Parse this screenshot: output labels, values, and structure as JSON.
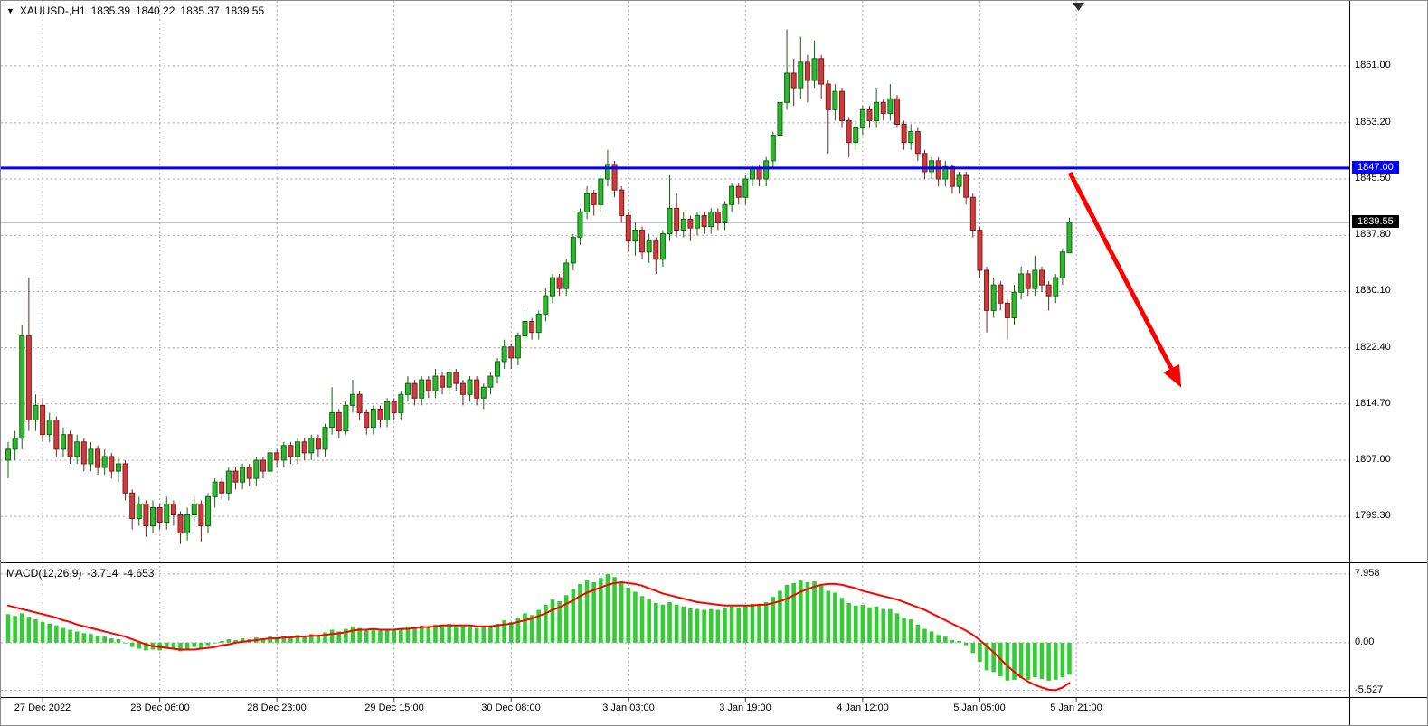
{
  "colors": {
    "up": "#2eb82e",
    "up_border": "#116611",
    "down": "#d23b3b",
    "down_border": "#7a1f1f",
    "grid": "#a6a6a6",
    "bid_line": "#9aa0a6",
    "resistance": "#0000ff",
    "macd_hist": "#32cd32",
    "macd_signal": "#ff0000",
    "arrow": "#fe0000",
    "separator": "#000000",
    "shift_marker": "#2f2f2f"
  },
  "header": {
    "chart_menu_icon": "▼",
    "symbol_period": "XAUUSD-,H1",
    "open": "1835.39",
    "high": "1840.22",
    "low": "1835.37",
    "close": "1839.55"
  },
  "macd_label": {
    "name": "MACD(12,26,9)",
    "macd_value": "-3.714",
    "signal_value": "-4.653"
  },
  "price_axis": {
    "ticks": [
      "1861.00",
      "1853.20",
      "1845.50",
      "1837.80",
      "1830.10",
      "1822.40",
      "1814.70",
      "1807.00",
      "1799.30"
    ],
    "resistance_tag": "1847.00",
    "bid_tag": "1839.55"
  },
  "macd_axis": {
    "ticks": [
      "7.958",
      "0.00",
      "-5.527"
    ]
  },
  "time_axis": {
    "ticks": [
      "27 Dec 2022",
      "28 Dec 06:00",
      "28 Dec 23:00",
      "29 Dec 15:00",
      "30 Dec 08:00",
      "3 Jan 03:00",
      "3 Jan 19:00",
      "4 Jan 12:00",
      "5 Jan 05:00",
      "5 Jan 21:00"
    ]
  },
  "chart_data": {
    "type": "candlestick",
    "symbol": "XAUUSD-",
    "timeframe": "H1",
    "ohlc_display": {
      "open": 1835.39,
      "high": 1840.22,
      "low": 1835.37,
      "close": 1839.55
    },
    "resistance_level": 1847.0,
    "bid_price": 1839.55,
    "ylim": [
      1793.0,
      1869.9
    ],
    "y_ticks": [
      1861.0,
      1853.2,
      1845.5,
      1837.8,
      1830.1,
      1822.4,
      1814.7,
      1807.0,
      1799.3
    ],
    "time_tick_bars": [
      5,
      22,
      39,
      56,
      73,
      90,
      107,
      124,
      141,
      155
    ],
    "candles": [
      [
        1807.0,
        1809.5,
        1804.5,
        1808.5
      ],
      [
        1808.5,
        1811.0,
        1807.0,
        1810.0
      ],
      [
        1810.0,
        1825.5,
        1808.5,
        1824.0
      ],
      [
        1824.0,
        1832.0,
        1811.0,
        1812.5
      ],
      [
        1812.5,
        1816.0,
        1811.0,
        1814.5
      ],
      [
        1814.5,
        1815.5,
        1809.5,
        1810.5
      ],
      [
        1810.5,
        1813.5,
        1809.5,
        1812.5
      ],
      [
        1812.5,
        1813.0,
        1807.5,
        1808.5
      ],
      [
        1808.5,
        1811.5,
        1807.5,
        1810.5
      ],
      [
        1810.5,
        1811.0,
        1806.5,
        1807.5
      ],
      [
        1807.5,
        1810.5,
        1806.5,
        1809.5
      ],
      [
        1809.5,
        1810.0,
        1805.5,
        1806.5
      ],
      [
        1806.5,
        1809.5,
        1805.5,
        1808.5
      ],
      [
        1808.5,
        1809.0,
        1805.0,
        1806.0
      ],
      [
        1806.0,
        1808.5,
        1805.0,
        1807.5
      ],
      [
        1807.5,
        1808.0,
        1804.5,
        1805.5
      ],
      [
        1805.5,
        1807.5,
        1804.0,
        1806.5
      ],
      [
        1806.5,
        1807.0,
        1801.5,
        1802.5
      ],
      [
        1802.5,
        1803.0,
        1797.5,
        1799.0
      ],
      [
        1799.0,
        1802.0,
        1798.0,
        1801.0
      ],
      [
        1801.0,
        1801.5,
        1796.5,
        1798.0
      ],
      [
        1798.0,
        1801.5,
        1797.0,
        1800.5
      ],
      [
        1800.5,
        1801.0,
        1797.5,
        1798.5
      ],
      [
        1798.5,
        1802.0,
        1797.5,
        1801.0
      ],
      [
        1801.0,
        1801.5,
        1798.0,
        1799.5
      ],
      [
        1799.5,
        1800.0,
        1795.5,
        1797.0
      ],
      [
        1797.0,
        1800.5,
        1796.0,
        1799.5
      ],
      [
        1799.5,
        1802.0,
        1798.5,
        1801.0
      ],
      [
        1801.0,
        1801.5,
        1795.8,
        1798.0
      ],
      [
        1798.0,
        1802.5,
        1797.0,
        1802.0
      ],
      [
        1802.0,
        1804.5,
        1800.5,
        1804.0
      ],
      [
        1804.0,
        1804.5,
        1801.5,
        1802.5
      ],
      [
        1802.5,
        1806.0,
        1801.5,
        1805.5
      ],
      [
        1805.5,
        1806.0,
        1803.0,
        1804.0
      ],
      [
        1804.0,
        1806.5,
        1803.0,
        1806.0
      ],
      [
        1806.0,
        1806.5,
        1803.5,
        1804.5
      ],
      [
        1804.5,
        1807.5,
        1803.5,
        1807.0
      ],
      [
        1807.0,
        1807.5,
        1804.5,
        1805.5
      ],
      [
        1805.5,
        1808.5,
        1804.5,
        1808.0
      ],
      [
        1808.0,
        1808.5,
        1806.0,
        1807.0
      ],
      [
        1807.0,
        1809.5,
        1806.0,
        1809.0
      ],
      [
        1809.0,
        1809.5,
        1806.5,
        1807.5
      ],
      [
        1807.5,
        1810.0,
        1806.5,
        1809.5
      ],
      [
        1809.5,
        1810.0,
        1807.0,
        1808.0
      ],
      [
        1808.0,
        1810.5,
        1807.0,
        1810.0
      ],
      [
        1810.0,
        1810.5,
        1807.5,
        1808.5
      ],
      [
        1808.5,
        1812.0,
        1807.5,
        1811.5
      ],
      [
        1811.5,
        1817.0,
        1810.5,
        1813.5
      ],
      [
        1813.5,
        1814.0,
        1810.0,
        1811.0
      ],
      [
        1811.0,
        1815.0,
        1810.5,
        1814.5
      ],
      [
        1814.5,
        1818.0,
        1813.5,
        1816.0
      ],
      [
        1816.0,
        1816.5,
        1812.5,
        1813.5
      ],
      [
        1813.5,
        1814.0,
        1810.5,
        1811.5
      ],
      [
        1811.5,
        1814.5,
        1810.5,
        1814.0
      ],
      [
        1814.0,
        1814.5,
        1811.5,
        1812.5
      ],
      [
        1812.5,
        1815.5,
        1811.5,
        1815.0
      ],
      [
        1815.0,
        1815.5,
        1812.5,
        1813.5
      ],
      [
        1813.5,
        1816.5,
        1812.5,
        1816.0
      ],
      [
        1816.0,
        1818.5,
        1815.0,
        1817.5
      ],
      [
        1817.5,
        1818.0,
        1814.5,
        1815.5
      ],
      [
        1815.5,
        1818.5,
        1814.5,
        1818.0
      ],
      [
        1818.0,
        1818.5,
        1815.5,
        1816.5
      ],
      [
        1816.5,
        1819.5,
        1815.5,
        1818.5
      ],
      [
        1818.5,
        1819.0,
        1816.0,
        1817.0
      ],
      [
        1817.0,
        1819.5,
        1816.0,
        1819.0
      ],
      [
        1819.0,
        1819.5,
        1816.5,
        1817.5
      ],
      [
        1817.5,
        1818.0,
        1814.5,
        1816.0
      ],
      [
        1816.0,
        1818.5,
        1815.0,
        1818.0
      ],
      [
        1818.0,
        1818.5,
        1814.5,
        1815.5
      ],
      [
        1815.5,
        1817.5,
        1814.0,
        1817.0
      ],
      [
        1817.0,
        1819.0,
        1816.0,
        1818.5
      ],
      [
        1818.5,
        1821.0,
        1817.5,
        1820.5
      ],
      [
        1820.5,
        1823.5,
        1819.5,
        1822.5
      ],
      [
        1822.5,
        1823.0,
        1819.5,
        1821.0
      ],
      [
        1821.0,
        1824.5,
        1820.0,
        1824.0
      ],
      [
        1824.0,
        1828.0,
        1823.0,
        1826.0
      ],
      [
        1826.0,
        1826.5,
        1823.5,
        1824.5
      ],
      [
        1824.5,
        1827.5,
        1823.5,
        1827.0
      ],
      [
        1827.0,
        1830.5,
        1826.0,
        1829.5
      ],
      [
        1829.5,
        1832.5,
        1828.5,
        1832.0
      ],
      [
        1832.0,
        1832.5,
        1829.5,
        1830.5
      ],
      [
        1830.5,
        1834.5,
        1829.5,
        1834.0
      ],
      [
        1834.0,
        1838.0,
        1833.0,
        1837.5
      ],
      [
        1837.5,
        1841.5,
        1836.5,
        1841.0
      ],
      [
        1841.0,
        1844.5,
        1840.0,
        1843.5
      ],
      [
        1843.5,
        1844.0,
        1840.5,
        1842.0
      ],
      [
        1842.0,
        1846.0,
        1841.0,
        1845.5
      ],
      [
        1845.5,
        1849.5,
        1844.5,
        1847.5
      ],
      [
        1847.5,
        1848.0,
        1843.0,
        1844.0
      ],
      [
        1844.0,
        1844.5,
        1839.5,
        1840.5
      ],
      [
        1840.5,
        1841.0,
        1835.5,
        1837.0
      ],
      [
        1837.0,
        1839.5,
        1835.0,
        1838.5
      ],
      [
        1838.5,
        1839.0,
        1834.5,
        1835.5
      ],
      [
        1835.5,
        1838.0,
        1834.0,
        1837.0
      ],
      [
        1837.0,
        1837.5,
        1832.5,
        1834.5
      ],
      [
        1834.5,
        1838.5,
        1833.5,
        1838.0
      ],
      [
        1838.0,
        1846.0,
        1837.0,
        1841.5
      ],
      [
        1841.5,
        1843.5,
        1837.5,
        1838.5
      ],
      [
        1838.5,
        1841.0,
        1837.5,
        1840.0
      ],
      [
        1840.0,
        1840.5,
        1837.0,
        1838.8
      ],
      [
        1838.8,
        1841.0,
        1837.8,
        1840.5
      ],
      [
        1840.5,
        1841.0,
        1838.0,
        1839.0
      ],
      [
        1839.0,
        1841.5,
        1838.0,
        1841.0
      ],
      [
        1841.0,
        1841.5,
        1838.5,
        1839.5
      ],
      [
        1839.5,
        1842.5,
        1838.5,
        1842.0
      ],
      [
        1842.0,
        1845.0,
        1841.0,
        1844.5
      ],
      [
        1844.5,
        1845.0,
        1842.0,
        1843.0
      ],
      [
        1843.0,
        1846.0,
        1842.0,
        1845.5
      ],
      [
        1845.5,
        1847.5,
        1844.5,
        1847.0
      ],
      [
        1847.0,
        1847.5,
        1844.5,
        1845.5
      ],
      [
        1845.5,
        1848.5,
        1844.5,
        1848.0
      ],
      [
        1848.0,
        1852.0,
        1847.0,
        1851.5
      ],
      [
        1851.5,
        1856.5,
        1850.5,
        1856.0
      ],
      [
        1856.0,
        1866.0,
        1855.0,
        1860.0
      ],
      [
        1860.0,
        1862.0,
        1855.5,
        1858.0
      ],
      [
        1858.0,
        1865.0,
        1856.5,
        1861.5
      ],
      [
        1861.5,
        1862.5,
        1856.0,
        1859.0
      ],
      [
        1859.0,
        1864.5,
        1858.0,
        1862.0
      ],
      [
        1862.0,
        1862.5,
        1856.5,
        1858.5
      ],
      [
        1858.5,
        1859.0,
        1849.0,
        1855.0
      ],
      [
        1855.0,
        1858.5,
        1853.5,
        1857.5
      ],
      [
        1857.5,
        1858.0,
        1852.5,
        1853.5
      ],
      [
        1853.5,
        1854.0,
        1848.5,
        1850.5
      ],
      [
        1850.5,
        1853.5,
        1849.5,
        1852.5
      ],
      [
        1852.5,
        1855.5,
        1851.5,
        1855.0
      ],
      [
        1855.0,
        1855.5,
        1852.5,
        1853.5
      ],
      [
        1853.5,
        1858.0,
        1852.5,
        1856.0
      ],
      [
        1856.0,
        1856.5,
        1853.5,
        1854.5
      ],
      [
        1854.5,
        1858.5,
        1853.5,
        1856.5
      ],
      [
        1856.5,
        1857.0,
        1852.5,
        1853.0
      ],
      [
        1853.0,
        1853.5,
        1849.5,
        1850.5
      ],
      [
        1850.5,
        1853.0,
        1849.5,
        1852.0
      ],
      [
        1852.0,
        1852.5,
        1848.0,
        1849.0
      ],
      [
        1849.0,
        1849.5,
        1845.5,
        1846.5
      ],
      [
        1846.5,
        1848.5,
        1845.5,
        1848.0
      ],
      [
        1848.0,
        1848.5,
        1844.5,
        1845.5
      ],
      [
        1845.5,
        1848.0,
        1844.5,
        1847.2
      ],
      [
        1847.2,
        1847.5,
        1843.5,
        1844.5
      ],
      [
        1844.5,
        1846.5,
        1843.5,
        1846.0
      ],
      [
        1846.0,
        1846.5,
        1842.0,
        1843.0
      ],
      [
        1843.0,
        1843.5,
        1837.5,
        1838.5
      ],
      [
        1838.5,
        1839.0,
        1832.0,
        1833.0
      ],
      [
        1833.0,
        1833.5,
        1824.5,
        1827.5
      ],
      [
        1827.5,
        1832.0,
        1826.5,
        1831.0
      ],
      [
        1831.0,
        1831.5,
        1827.5,
        1828.5
      ],
      [
        1828.5,
        1829.0,
        1823.5,
        1826.5
      ],
      [
        1826.5,
        1831.0,
        1825.5,
        1830.0
      ],
      [
        1830.0,
        1833.5,
        1829.0,
        1832.5
      ],
      [
        1832.5,
        1833.0,
        1829.5,
        1830.5
      ],
      [
        1830.5,
        1835.0,
        1829.5,
        1833.0
      ],
      [
        1833.0,
        1833.5,
        1830.0,
        1831.0
      ],
      [
        1831.0,
        1831.5,
        1827.5,
        1829.5
      ],
      [
        1829.5,
        1832.5,
        1828.5,
        1832.0
      ],
      [
        1832.0,
        1836.0,
        1831.0,
        1835.5
      ],
      [
        1835.39,
        1840.22,
        1835.37,
        1839.55
      ]
    ],
    "macd": {
      "params": "12,26,9",
      "macd_value": -3.714,
      "signal_value": -4.653,
      "y_ticks": [
        7.958,
        0.0,
        -5.527
      ],
      "ylim": [
        -6.3,
        9.2
      ],
      "histogram": [
        3.3,
        3.1,
        3.4,
        3,
        2.7,
        2.4,
        2.2,
        2,
        1.7,
        1.5,
        1.3,
        1.1,
        1,
        0.8,
        0.7,
        0.5,
        0.4,
        0,
        -0.5,
        -0.7,
        -0.9,
        -0.8,
        -0.9,
        -0.7,
        -0.8,
        -1,
        -0.8,
        -0.5,
        -0.7,
        -0.3,
        0,
        0.2,
        0.4,
        0.3,
        0.5,
        0.4,
        0.6,
        0.5,
        0.7,
        0.6,
        0.8,
        0.7,
        0.9,
        0.8,
        1,
        0.9,
        1.2,
        1.5,
        1.3,
        1.6,
        1.9,
        1.7,
        1.5,
        1.6,
        1.4,
        1.6,
        1.5,
        1.7,
        1.9,
        1.8,
        2,
        1.9,
        2.1,
        2,
        2.2,
        2,
        1.8,
        1.9,
        1.7,
        1.8,
        2,
        2.2,
        2.6,
        2.4,
        2.9,
        3.4,
        3.2,
        3.8,
        4.4,
        5,
        4.8,
        5.5,
        6.2,
        6.8,
        7.2,
        7,
        7.5,
        7.96,
        7.6,
        7,
        6.4,
        5.9,
        5.4,
        5,
        4.6,
        4.4,
        4.7,
        4.4,
        4.2,
        4,
        3.9,
        3.8,
        3.9,
        3.8,
        4,
        4.2,
        4.1,
        4.3,
        4.5,
        4.4,
        4.7,
        5.3,
        6,
        6.7,
        6.9,
        7.2,
        7,
        7.1,
        6.6,
        6,
        5.8,
        5.2,
        4.6,
        4.3,
        4.4,
        4.1,
        4.2,
        3.9,
        3.9,
        3.4,
        2.9,
        2.7,
        2.1,
        1.6,
        1.3,
        0.9,
        0.7,
        0.3,
        0.2,
        -0.3,
        -1.2,
        -2.2,
        -3.2,
        -3.4,
        -3.9,
        -4.4,
        -4.3,
        -4.1,
        -4.3,
        -4,
        -4.2,
        -4.4,
        -4.3,
        -4,
        -3.714
      ],
      "signal": [
        4.3,
        4.1,
        3.9,
        3.7,
        3.5,
        3.3,
        3.1,
        2.9,
        2.6,
        2.4,
        2.1,
        1.9,
        1.7,
        1.5,
        1.3,
        1.1,
        0.9,
        0.7,
        0.4,
        0.1,
        -0.2,
        -0.4,
        -0.5,
        -0.6,
        -0.7,
        -0.8,
        -0.8,
        -0.8,
        -0.7,
        -0.6,
        -0.5,
        -0.3,
        -0.2,
        0,
        0.1,
        0.2,
        0.3,
        0.4,
        0.5,
        0.5,
        0.6,
        0.6,
        0.7,
        0.7,
        0.8,
        0.8,
        0.9,
        1,
        1.1,
        1.2,
        1.4,
        1.5,
        1.5,
        1.6,
        1.5,
        1.5,
        1.5,
        1.6,
        1.6,
        1.7,
        1.8,
        1.8,
        1.9,
        2,
        2,
        2,
        2,
        2,
        1.9,
        1.9,
        1.9,
        2,
        2.1,
        2.2,
        2.4,
        2.6,
        2.8,
        3.1,
        3.4,
        3.8,
        4.1,
        4.5,
        4.9,
        5.4,
        5.8,
        6.1,
        6.4,
        6.7,
        6.9,
        7,
        6.9,
        6.8,
        6.6,
        6.3,
        6,
        5.7,
        5.5,
        5.3,
        5.1,
        4.9,
        4.7,
        4.6,
        4.5,
        4.4,
        4.3,
        4.3,
        4.3,
        4.3,
        4.3,
        4.4,
        4.4,
        4.6,
        4.8,
        5.1,
        5.5,
        5.9,
        6.2,
        6.5,
        6.7,
        6.8,
        6.8,
        6.7,
        6.5,
        6.3,
        6,
        5.8,
        5.6,
        5.4,
        5.2,
        5,
        4.7,
        4.4,
        4.1,
        3.8,
        3.4,
        3,
        2.6,
        2.2,
        1.8,
        1.4,
        0.9,
        0.3,
        -0.4,
        -1.1,
        -1.9,
        -2.7,
        -3.4,
        -4,
        -4.5,
        -4.9,
        -5.2,
        -5.45,
        -5.5,
        -5.2,
        -4.653
      ]
    }
  }
}
